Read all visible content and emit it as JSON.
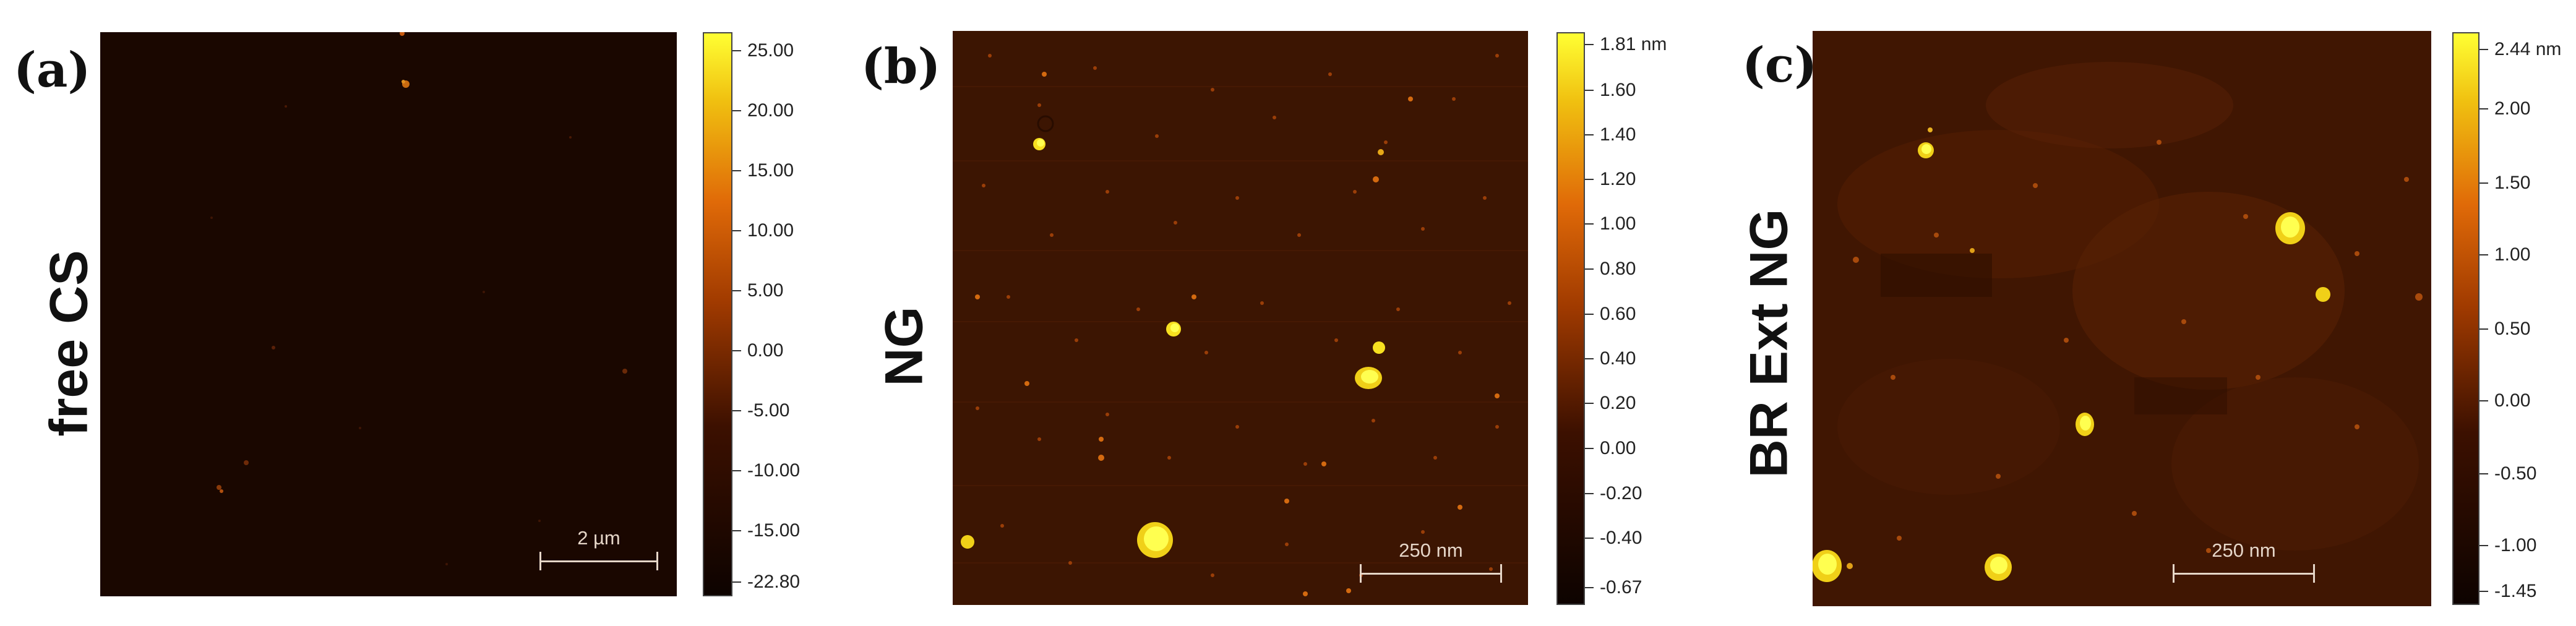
{
  "colormap": {
    "low": "#0d0300",
    "mid": "#a33c00",
    "high": "#ffff33"
  },
  "panels": [
    {
      "letter": "(a)",
      "side_label": "free CS",
      "scalebar": "2 µm",
      "colorbar_ticks": [
        "25.00",
        "20.00",
        "15.00",
        "10.00",
        "5.00",
        "0.00",
        "-5.00",
        "-10.00",
        "-15.00",
        "-22.80"
      ],
      "colorbar_unit": ""
    },
    {
      "letter": "(b)",
      "side_label": "NG",
      "scalebar": "250 nm",
      "colorbar_ticks": [
        "1.81 nm",
        "1.60",
        "1.40",
        "1.20",
        "1.00",
        "0.80",
        "0.60",
        "0.40",
        "0.20",
        "0.00",
        "-0.20",
        "-0.40",
        "-0.67"
      ],
      "colorbar_unit": "nm"
    },
    {
      "letter": "(c)",
      "side_label": "BR Ext NG",
      "scalebar": "250 nm",
      "colorbar_ticks": [
        "2.44 nm",
        "2.00",
        "1.50",
        "1.00",
        "0.50",
        "0.00",
        "-0.50",
        "-1.00",
        "-1.45"
      ],
      "colorbar_unit": "nm"
    }
  ]
}
